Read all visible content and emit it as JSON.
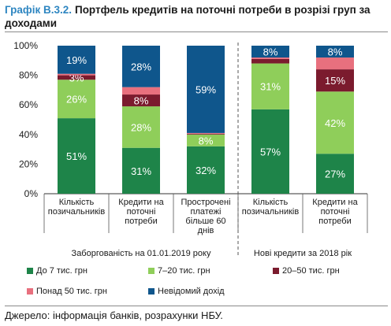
{
  "title": {
    "label": "Графік В.3.2.",
    "text": "Портфель кредитів на поточні потреби в розрізі груп за доходами"
  },
  "source": "Джерело: інформація банків, розрахунки НБУ.",
  "colors": {
    "s1": "#1e8449",
    "s2": "#8fce5a",
    "s3": "#7b1b2e",
    "s4": "#e8707e",
    "s5": "#0f568c"
  },
  "chart_data": {
    "type": "bar",
    "stacked": true,
    "categories": [
      [
        "Кількість",
        "позичальників"
      ],
      [
        "Кредити на",
        "поточні",
        "потреби"
      ],
      [
        "Прострочені",
        "платежі",
        "більше 60",
        "днів"
      ],
      [
        "Кількість",
        "позичальників"
      ],
      [
        "Кредити на",
        "поточні",
        "потреби"
      ]
    ],
    "groups": [
      {
        "label": "Заборгованість на 01.01.2019 року",
        "categories": [
          0,
          1,
          2
        ]
      },
      {
        "label": "Нові кредити за 2018 рік",
        "categories": [
          3,
          4
        ]
      }
    ],
    "ylim": [
      0,
      100
    ],
    "yticks": [
      "0%",
      "20%",
      "40%",
      "60%",
      "80%",
      "100%"
    ],
    "series": [
      {
        "name": "До 7 тис. грн",
        "color_key": "s1",
        "values": [
          51,
          31,
          32,
          57,
          27
        ],
        "labels": [
          "51%",
          "31%",
          "32%",
          "57%",
          "27%"
        ]
      },
      {
        "name": "7–20 тис. грн",
        "color_key": "s2",
        "values": [
          26,
          28,
          8,
          31,
          42
        ],
        "labels": [
          "26%",
          "28%",
          "8%",
          "31%",
          "42%"
        ]
      },
      {
        "name": "20–50 тис. грн",
        "color_key": "s3",
        "values": [
          3,
          8,
          0.5,
          3,
          15
        ],
        "labels": [
          "3%",
          "8%",
          "",
          "",
          "15%"
        ]
      },
      {
        "name": "Понад 50 тис. грн",
        "color_key": "s4",
        "values": [
          1,
          5,
          0.5,
          1,
          8
        ],
        "labels": [
          "",
          "",
          "",
          "",
          ""
        ]
      },
      {
        "name": "Невідомий дохід",
        "color_key": "s5",
        "values": [
          19,
          28,
          59,
          8,
          8
        ],
        "labels": [
          "19%",
          "28%",
          "59%",
          "8%",
          "8%"
        ]
      }
    ],
    "legend": {
      "position": "bottom"
    },
    "grid": false
  }
}
